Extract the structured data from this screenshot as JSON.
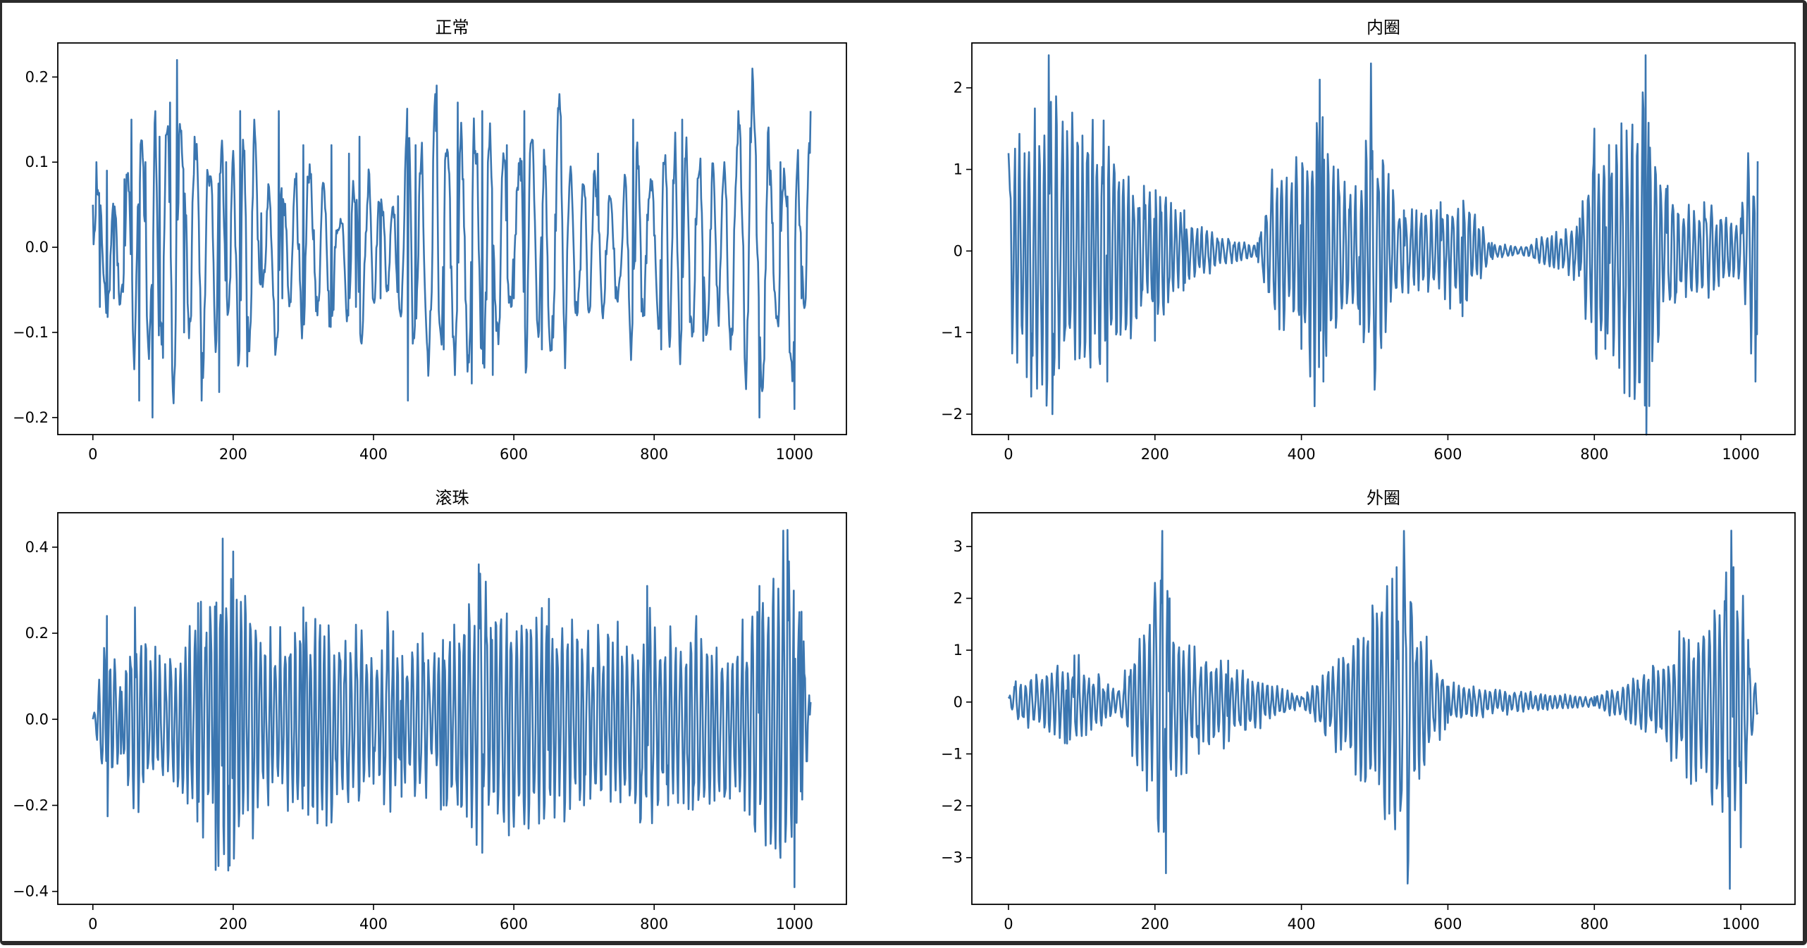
{
  "figure": {
    "line_color": "#3b76b0",
    "background": "#ffffff"
  },
  "chart_data": [
    {
      "type": "line",
      "title": "正常",
      "xlabel": "",
      "ylabel": "",
      "xlim": [
        -50,
        1074
      ],
      "ylim": [
        -0.22,
        0.24
      ],
      "x_ticks": [
        0,
        200,
        400,
        600,
        800,
        1000
      ],
      "x_tick_labels": [
        "0",
        "200",
        "400",
        "600",
        "800",
        "1000"
      ],
      "y_ticks": [
        -0.2,
        -0.1,
        0.0,
        0.1,
        0.2
      ],
      "y_tick_labels": [
        "−0.2",
        "−0.1",
        "0.0",
        "0.1",
        "0.2"
      ],
      "grid": false,
      "series": [
        {
          "n_points": 1024,
          "x_start": 0,
          "x_step": 1,
          "sampled_x": [
            0,
            5,
            10,
            20,
            30,
            45,
            55,
            66,
            75,
            85,
            95,
            100,
            110,
            120,
            130,
            145,
            155,
            165,
            180,
            190,
            210,
            220,
            230,
            240,
            265,
            270,
            300,
            320,
            340,
            350,
            365,
            375,
            380,
            410,
            435,
            449,
            460,
            490,
            500,
            520,
            540,
            555,
            570,
            590,
            600,
            615,
            640,
            665,
            690,
            720,
            745,
            770,
            795,
            810,
            840,
            870,
            900,
            920,
            940,
            950,
            980,
            1000,
            1010,
            1023
          ],
          "sampled_y": [
            0.05,
            0.1,
            -0.07,
            0.09,
            -0.06,
            0.08,
            0.15,
            -0.18,
            0.1,
            -0.2,
            0.13,
            -0.13,
            0.17,
            0.22,
            -0.1,
            0.13,
            -0.18,
            0.08,
            -0.17,
            0.1,
            0.16,
            -0.14,
            0.15,
            0.04,
            0.16,
            -0.06,
            0.12,
            -0.08,
            0.12,
            0.02,
            0.11,
            -0.07,
            0.13,
            -0.06,
            0.06,
            -0.18,
            0.12,
            0.19,
            -0.12,
            0.17,
            -0.16,
            0.16,
            -0.15,
            0.12,
            -0.06,
            0.16,
            -0.12,
            0.18,
            -0.08,
            0.11,
            -0.06,
            0.15,
            0.08,
            -0.12,
            0.15,
            -0.11,
            0.1,
            0.16,
            0.21,
            -0.2,
            0.1,
            -0.19,
            -0.06,
            0.16
          ]
        }
      ]
    },
    {
      "type": "line",
      "title": "内圈",
      "xlabel": "",
      "ylabel": "",
      "xlim": [
        -50,
        1074
      ],
      "ylim": [
        -2.25,
        2.55
      ],
      "x_ticks": [
        0,
        200,
        400,
        600,
        800,
        1000
      ],
      "x_tick_labels": [
        "0",
        "200",
        "400",
        "600",
        "800",
        "1000"
      ],
      "y_ticks": [
        -2,
        -1,
        0,
        1,
        2
      ],
      "y_tick_labels": [
        "−2",
        "−1",
        "0",
        "1",
        "2"
      ],
      "grid": false,
      "series": [
        {
          "n_points": 1024,
          "x_start": 0,
          "x_step": 1,
          "sampled_x": [
            0,
            55,
            60,
            130,
            135,
            185,
            200,
            240,
            300,
            340,
            360,
            400,
            425,
            430,
            450,
            480,
            495,
            500,
            540,
            590,
            620,
            660,
            700,
            780,
            800,
            815,
            820,
            870,
            875,
            900,
            950,
            1000,
            1010,
            1020,
            1023
          ],
          "sampled_y": [
            1.2,
            2.4,
            -2.0,
            1.6,
            -1.6,
            0.8,
            -1.1,
            0.5,
            0.15,
            0.1,
            1.0,
            -1.2,
            2.1,
            -1.6,
            1.0,
            -0.9,
            2.3,
            -1.7,
            0.5,
            0.6,
            -0.8,
            0.1,
            0.05,
            0.4,
            1.5,
            -1.2,
            1.3,
            2.4,
            -1.9,
            0.8,
            0.6,
            0.4,
            1.2,
            -1.6,
            1.1
          ]
        }
      ]
    },
    {
      "type": "line",
      "title": "滚珠",
      "xlabel": "",
      "ylabel": "",
      "xlim": [
        -50,
        1074
      ],
      "ylim": [
        -0.43,
        0.48
      ],
      "x_ticks": [
        0,
        200,
        400,
        600,
        800,
        1000
      ],
      "x_tick_labels": [
        "0",
        "200",
        "400",
        "600",
        "800",
        "1000"
      ],
      "y_ticks": [
        -0.4,
        -0.2,
        0.0,
        0.2,
        0.4
      ],
      "y_tick_labels": [
        "−0.4",
        "−0.2",
        "0.0",
        "0.2",
        "0.4"
      ],
      "grid": false,
      "series": [
        {
          "n_points": 1024,
          "x_start": 0,
          "x_step": 1,
          "sampled_x": [
            0,
            20,
            40,
            60,
            100,
            150,
            175,
            185,
            195,
            200,
            250,
            300,
            340,
            375,
            400,
            420,
            440,
            470,
            500,
            550,
            555,
            560,
            600,
            650,
            700,
            720,
            780,
            790,
            820,
            860,
            900,
            950,
            990,
            1000,
            1010,
            1023
          ],
          "sampled_y": [
            0.0,
            0.24,
            -0.08,
            0.26,
            -0.13,
            0.27,
            -0.35,
            0.42,
            -0.34,
            0.39,
            -0.2,
            0.26,
            -0.24,
            0.22,
            -0.15,
            0.25,
            -0.18,
            0.2,
            -0.2,
            0.36,
            -0.31,
            0.32,
            -0.25,
            0.28,
            -0.2,
            0.22,
            -0.24,
            0.31,
            -0.2,
            0.24,
            -0.18,
            0.31,
            0.44,
            -0.39,
            0.25,
            0.04
          ]
        }
      ]
    },
    {
      "type": "line",
      "title": "外圈",
      "xlabel": "",
      "ylabel": "",
      "xlim": [
        -50,
        1074
      ],
      "ylim": [
        -3.9,
        3.65
      ],
      "x_ticks": [
        0,
        200,
        400,
        600,
        800,
        1000
      ],
      "x_tick_labels": [
        "0",
        "200",
        "400",
        "600",
        "800",
        "1000"
      ],
      "y_ticks": [
        -3,
        -2,
        -1,
        0,
        1,
        2,
        3
      ],
      "y_tick_labels": [
        "−3",
        "−2",
        "−1",
        "0",
        "1",
        "2",
        "3"
      ],
      "grid": false,
      "series": [
        {
          "n_points": 1024,
          "x_start": 0,
          "x_step": 1,
          "sampled_x": [
            0,
            10,
            80,
            90,
            150,
            200,
            205,
            210,
            215,
            220,
            260,
            300,
            400,
            530,
            535,
            540,
            545,
            550,
            600,
            700,
            800,
            880,
            980,
            985,
            990,
            1000,
            1010,
            1023
          ],
          "sampled_y": [
            0.1,
            0.4,
            -0.8,
            0.9,
            0.2,
            2.3,
            -2.5,
            3.3,
            -3.3,
            2.0,
            -1.0,
            0.8,
            0.1,
            2.6,
            -2.1,
            3.3,
            -3.5,
            1.9,
            -0.4,
            0.2,
            0.1,
            0.7,
            2.5,
            -3.6,
            2.6,
            -2.8,
            1.2,
            -0.2
          ]
        }
      ]
    }
  ]
}
